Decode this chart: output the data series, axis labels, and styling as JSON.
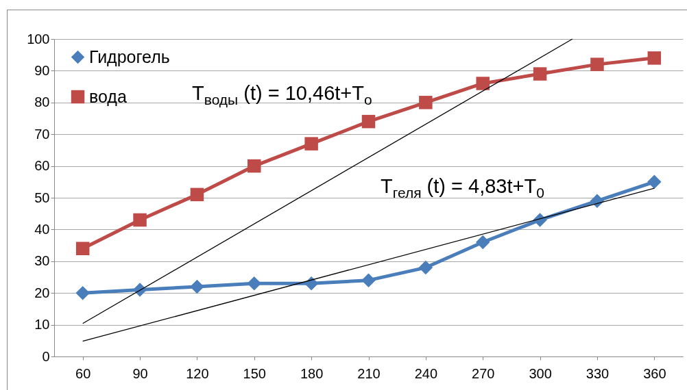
{
  "chart_data": {
    "type": "line",
    "xlim": [
      45,
      375
    ],
    "xticks": [
      60,
      90,
      120,
      150,
      180,
      210,
      240,
      270,
      300,
      330,
      360
    ],
    "ylim": [
      0,
      100
    ],
    "yticks": [
      0,
      10,
      20,
      30,
      40,
      50,
      60,
      70,
      80,
      90,
      100
    ],
    "grid": "y",
    "legend": "top left",
    "x": [
      60,
      90,
      120,
      150,
      180,
      210,
      240,
      270,
      300,
      330,
      360
    ],
    "series": [
      {
        "name": "Гидрогель",
        "color": "#4a7ebb",
        "marker": "diamond",
        "values": [
          20,
          21,
          22,
          23,
          23,
          24,
          28,
          36,
          43,
          49,
          55
        ]
      },
      {
        "name": "вода",
        "color": "#be4b48",
        "marker": "square",
        "values": [
          34,
          43,
          51,
          60,
          67,
          74,
          80,
          86,
          89,
          92,
          94
        ]
      },
      {
        "type": "line",
        "color": "#000000",
        "marker": "none",
        "x": [
          60,
          317
        ],
        "values": [
          10.4,
          100
        ]
      },
      {
        "type": "line",
        "color": "#000000",
        "marker": "none",
        "x": [
          60,
          360
        ],
        "values": [
          4.8,
          53
        ]
      }
    ],
    "annotations": [
      "T$_{воды}$ (t) = 10,46t+T$_{o}$",
      "T$_{геля}$ (t) = 4,83t+T$_{0}$"
    ]
  }
}
